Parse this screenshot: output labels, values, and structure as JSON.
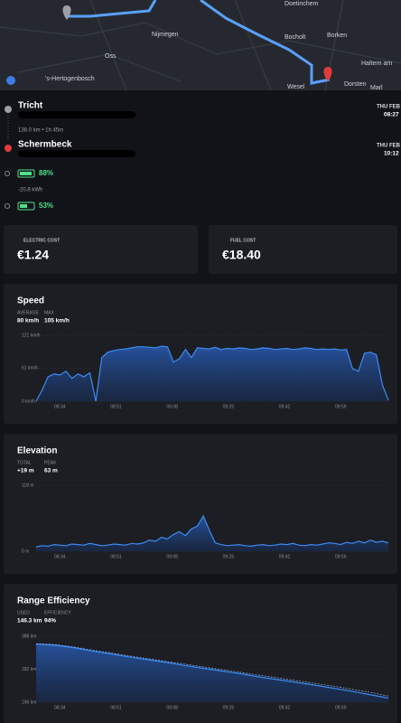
{
  "map": {
    "labels": [
      "Doetinchem",
      "Nijmegen",
      "Bocholt",
      "Borken",
      "Oss",
      "'s-Hertogenbosch",
      "Haltern am",
      "Wesel",
      "Dorsten",
      "Marl"
    ]
  },
  "trip": {
    "start": {
      "name": "Tricht",
      "day": "THU FEB",
      "time": "08:27"
    },
    "summary": "138.0 km • 1h 45m",
    "end": {
      "name": "Schermbeck",
      "day": "THU FEB",
      "time": "10:12"
    },
    "battery_start": "88%",
    "energy": "-20.8 kWh",
    "battery_end": "53%"
  },
  "costs": {
    "electric_label": "ELECTRIC COST",
    "electric_value": "€1.24",
    "fuel_label": "FUEL COST",
    "fuel_value": "€18.40"
  },
  "speed": {
    "type": "area",
    "title": "Speed",
    "stats": [
      {
        "label": "AVERAGE",
        "value": "80 km/h"
      },
      {
        "label": "MAX",
        "value": "105 km/h"
      }
    ],
    "xticks": [
      "08:34",
      "08:51",
      "09:08",
      "09:25",
      "09:42",
      "09:59"
    ],
    "ylim": [
      0,
      121
    ],
    "yticks": [
      {
        "value": 0,
        "label": "0 km/h"
      },
      {
        "value": 61,
        "label": "61 km/h"
      },
      {
        "value": 121,
        "label": "121 km/h"
      }
    ],
    "values": [
      0,
      20,
      45,
      50,
      48,
      55,
      42,
      50,
      45,
      52,
      0,
      80,
      90,
      93,
      95,
      96,
      98,
      100,
      100,
      99,
      98,
      101,
      100,
      72,
      78,
      95,
      80,
      98,
      97,
      96,
      99,
      95,
      97,
      96,
      98,
      97,
      95,
      96,
      98,
      97,
      95,
      96,
      97,
      95,
      96,
      98,
      97,
      95,
      96,
      95,
      96,
      94,
      95,
      60,
      55,
      88,
      90,
      85,
      30,
      2
    ]
  },
  "elevation": {
    "type": "area",
    "title": "Elevation",
    "stats": [
      {
        "label": "TOTAL",
        "value": "+19 m"
      },
      {
        "label": "PEAK",
        "value": "63 m"
      }
    ],
    "xticks": [
      "08:34",
      "08:51",
      "09:08",
      "09:25",
      "09:42",
      "09:59"
    ],
    "ylim": [
      0,
      118
    ],
    "yticks": [
      {
        "value": 0,
        "label": "0 m"
      },
      {
        "value": 118,
        "label": "118 m"
      }
    ],
    "values": [
      8,
      10,
      9,
      12,
      11,
      10,
      13,
      12,
      11,
      14,
      12,
      10,
      11,
      13,
      12,
      11,
      14,
      13,
      15,
      20,
      18,
      25,
      22,
      30,
      35,
      28,
      40,
      45,
      63,
      38,
      15,
      12,
      10,
      11,
      12,
      10,
      9,
      11,
      12,
      10,
      11,
      13,
      12,
      14,
      11,
      10,
      12,
      11,
      13,
      15,
      14,
      12,
      16,
      14,
      18,
      15,
      20,
      16,
      18,
      15
    ]
  },
  "range": {
    "type": "area",
    "title": "Range Efficiency",
    "stats": [
      {
        "label": "USED",
        "value": "146.3 km"
      },
      {
        "label": "EFFICIENCY",
        "value": "94%"
      }
    ],
    "xticks": [
      "08:34",
      "08:51",
      "09:08",
      "09:25",
      "09:42",
      "09:59"
    ],
    "ylim": [
      196,
      388
    ],
    "yticks": [
      {
        "value": 196,
        "label": "196 km"
      },
      {
        "value": 292,
        "label": "292 km"
      },
      {
        "value": 388,
        "label": "388 km"
      }
    ],
    "values": [
      365,
      362,
      355,
      345,
      337,
      328,
      320,
      312,
      303,
      295,
      287,
      279,
      270,
      262,
      254,
      246,
      237,
      228,
      218,
      208
    ],
    "expected_values": [
      366,
      364,
      357,
      348,
      340,
      331,
      323,
      315,
      307,
      299,
      291,
      283,
      275,
      267,
      259,
      251,
      243,
      234,
      225,
      214
    ]
  }
}
